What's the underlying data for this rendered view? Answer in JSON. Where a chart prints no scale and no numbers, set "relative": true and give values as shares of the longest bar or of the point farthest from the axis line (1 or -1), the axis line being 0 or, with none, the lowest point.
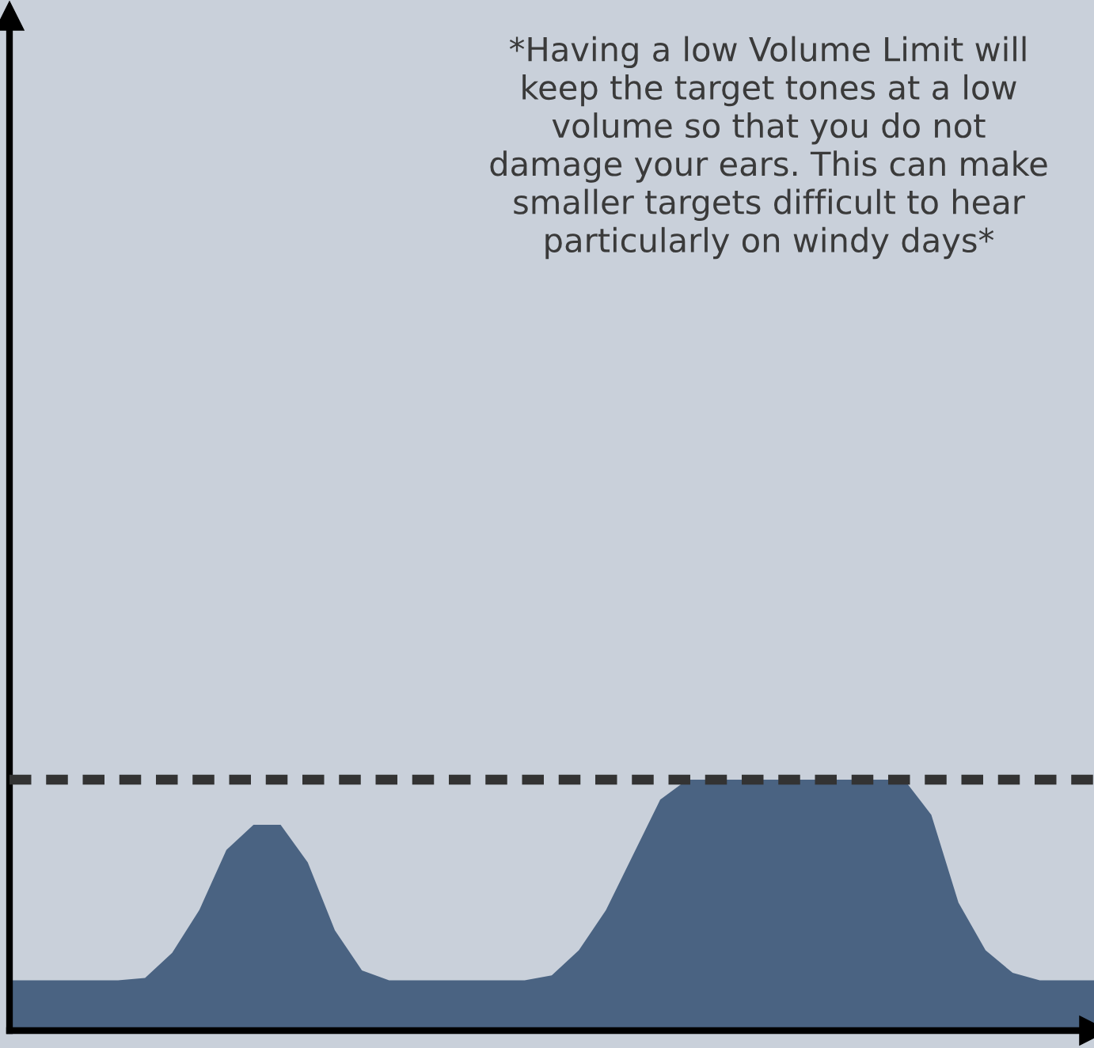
{
  "chart_data": {
    "type": "area",
    "relative": true,
    "categories": [
      null,
      null,
      null,
      null,
      null,
      null,
      null,
      null,
      null,
      null,
      null,
      null,
      null,
      null,
      null,
      null,
      null,
      null,
      null,
      null,
      null,
      null,
      null,
      null,
      null,
      null,
      null,
      null,
      null,
      null,
      null,
      null,
      null,
      null,
      null,
      null,
      null,
      null,
      null,
      null,
      null
    ],
    "series": [
      {
        "color": "#4a6382",
        "values": [
          0.2,
          0.2,
          0.2,
          0.2,
          0.2,
          0.21,
          0.31,
          0.48,
          0.72,
          0.82,
          0.82,
          0.67,
          0.4,
          0.24,
          0.2,
          0.2,
          0.2,
          0.2,
          0.2,
          0.2,
          0.22,
          0.32,
          0.48,
          0.7,
          0.92,
          1,
          1,
          1,
          1,
          1,
          1,
          1,
          1,
          1,
          0.86,
          0.51,
          0.32,
          0.23,
          0.2,
          0.2,
          0.2
        ]
      }
    ],
    "ref_lines": [
      {
        "axis": "y",
        "value": 1,
        "color": "#333333",
        "line_style": "dashed"
      }
    ],
    "annotations": [
      "*Having a low Volume Limit will\nkeep the target tones at a low\nvolume so that you do not\ndamage your ears. This can make\nsmaller targets difficult to hear\nparticularly on windy days*"
    ]
  }
}
